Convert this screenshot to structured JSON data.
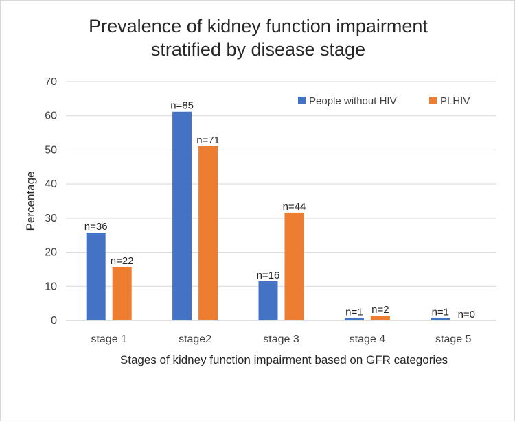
{
  "chart_data": {
    "type": "bar",
    "title_line1": "Prevalence of kidney function impairment",
    "title_line2": "stratified by disease stage",
    "xlabel": "Stages of kidney function impairment based on GFR categories",
    "ylabel": "Percentage",
    "ylim": [
      0,
      70
    ],
    "yticks": [
      "0",
      "10",
      "20",
      "30",
      "40",
      "50",
      "60",
      "70"
    ],
    "categories": [
      "stage 1",
      "stage2",
      "stage 3",
      "stage 4",
      "stage 5"
    ],
    "series": [
      {
        "name": "People without HIV",
        "color": "#4472c4",
        "values": [
          25.7,
          61.2,
          11.5,
          0.7,
          0.7
        ],
        "labels": [
          "n=36",
          "n=85",
          "n=16",
          "n=1",
          "n=1"
        ]
      },
      {
        "name": "PLHIV",
        "color": "#ed7d31",
        "values": [
          15.7,
          51.1,
          31.6,
          1.4,
          0
        ],
        "labels": [
          "n=22",
          "n=71",
          "n=44",
          "n=2",
          "n=0"
        ]
      }
    ],
    "grid": true,
    "legend_position": "top-right"
  }
}
